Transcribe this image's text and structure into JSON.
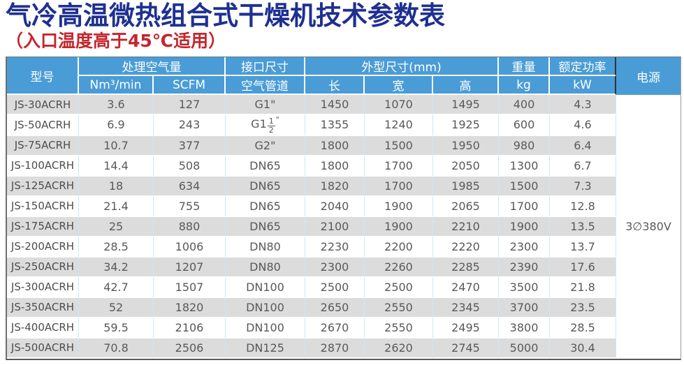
{
  "page": {
    "title": "气冷高温微热组合式干燥机技术参数表",
    "subtitle": "（入口温度高于45℃适用）"
  },
  "colors": {
    "title_blue": "#1e3091",
    "subtitle_red": "#c4262d",
    "header_blue": "#4a9cd6",
    "row_gray": "#dcdcdc",
    "row_white": "#ffffff",
    "cell_text": "#58595b"
  },
  "table": {
    "headers": {
      "model": "型号",
      "air_volume": "处理空气量",
      "air_volume_units": [
        "Nm³/min",
        "SCFM"
      ],
      "interface_size": "接口尺寸",
      "air_pipe": "空气管道",
      "dimensions": "外型尺寸(mm)",
      "dimension_units": [
        "长",
        "宽",
        "高"
      ],
      "weight": "重量",
      "weight_unit": "kg",
      "rated_power": "额定功率",
      "power_unit": "kW",
      "power_supply": "电源"
    },
    "power_supply_value": "3∅380V",
    "rows": [
      {
        "model": "JS-30ACRH",
        "nm3_min": "3.6",
        "scfm": "127",
        "pipe": "G1\"",
        "length": "1450",
        "width": "1070",
        "height": "1495",
        "weight_kg": "400",
        "power_kw": "4.3"
      },
      {
        "model": "JS-50ACRH",
        "nm3_min": "6.9",
        "scfm": "243",
        "pipe": "G1-1/2\"",
        "length": "1355",
        "width": "1240",
        "height": "1925",
        "weight_kg": "600",
        "power_kw": "4.6"
      },
      {
        "model": "JS-75ACRH",
        "nm3_min": "10.7",
        "scfm": "377",
        "pipe": "G2\"",
        "length": "1800",
        "width": "1500",
        "height": "1950",
        "weight_kg": "980",
        "power_kw": "6.4"
      },
      {
        "model": "JS-100ACRH",
        "nm3_min": "14.4",
        "scfm": "508",
        "pipe": "DN65",
        "length": "1800",
        "width": "1700",
        "height": "2050",
        "weight_kg": "1300",
        "power_kw": "6.7"
      },
      {
        "model": "JS-125ACRH",
        "nm3_min": "18",
        "scfm": "634",
        "pipe": "DN65",
        "length": "1820",
        "width": "1700",
        "height": "1985",
        "weight_kg": "1500",
        "power_kw": "7.3"
      },
      {
        "model": "JS-150ACRH",
        "nm3_min": "21.4",
        "scfm": "755",
        "pipe": "DN65",
        "length": "2040",
        "width": "1900",
        "height": "2065",
        "weight_kg": "1700",
        "power_kw": "12.8"
      },
      {
        "model": "JS-175ACRH",
        "nm3_min": "25",
        "scfm": "880",
        "pipe": "DN65",
        "length": "2100",
        "width": "1900",
        "height": "2210",
        "weight_kg": "1900",
        "power_kw": "13.5"
      },
      {
        "model": "JS-200ACRH",
        "nm3_min": "28.5",
        "scfm": "1006",
        "pipe": "DN80",
        "length": "2230",
        "width": "2200",
        "height": "2220",
        "weight_kg": "2300",
        "power_kw": "13.7"
      },
      {
        "model": "JS-250ACRH",
        "nm3_min": "34.2",
        "scfm": "1207",
        "pipe": "DN80",
        "length": "2300",
        "width": "2260",
        "height": "2285",
        "weight_kg": "2390",
        "power_kw": "17.6"
      },
      {
        "model": "JS-300ACRH",
        "nm3_min": "42.7",
        "scfm": "1507",
        "pipe": "DN100",
        "length": "2500",
        "width": "2500",
        "height": "2470",
        "weight_kg": "3500",
        "power_kw": "21.8"
      },
      {
        "model": "JS-350ACRH",
        "nm3_min": "52",
        "scfm": "1820",
        "pipe": "DN100",
        "length": "2650",
        "width": "2550",
        "height": "2345",
        "weight_kg": "3700",
        "power_kw": "23.5"
      },
      {
        "model": "JS-400ACRH",
        "nm3_min": "59.5",
        "scfm": "2106",
        "pipe": "DN100",
        "length": "2670",
        "width": "2550",
        "height": "2495",
        "weight_kg": "3800",
        "power_kw": "28.5"
      },
      {
        "model": "JS-500ACRH",
        "nm3_min": "70.8",
        "scfm": "2506",
        "pipe": "DN125",
        "length": "2870",
        "width": "2620",
        "height": "2745",
        "weight_kg": "5000",
        "power_kw": "30.4"
      }
    ]
  }
}
